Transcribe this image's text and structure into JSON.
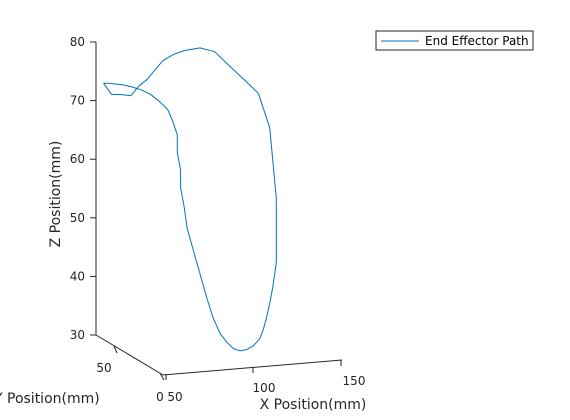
{
  "chart_data": {
    "type": "line",
    "projection": "3d",
    "xlabel": "X Position(mm)",
    "ylabel": "Y Position(mm)",
    "zlabel": "Z Position(mm)",
    "x_ticks": [
      "50",
      "100",
      "150"
    ],
    "y_ticks": [
      "0",
      "50"
    ],
    "z_ticks": [
      "30",
      "40",
      "50",
      "60",
      "70",
      "80"
    ],
    "zlim": [
      28,
      80
    ],
    "grid": false,
    "legend": {
      "position": "top-right",
      "entries": [
        "End Effector Path"
      ]
    },
    "series": [
      {
        "name": "End Effector Path",
        "color": "#0072bd",
        "path_description": "Closed-ish loop traced by end effector",
        "x": [
          55,
          57,
          60,
          62,
          64,
          66,
          68,
          70,
          73,
          76,
          80,
          84,
          88,
          92,
          96,
          99,
          100,
          101,
          101,
          101,
          100,
          99,
          98,
          97,
          96,
          94,
          92,
          90,
          88,
          86,
          84,
          82,
          80,
          78,
          76,
          74,
          73,
          72,
          72,
          71,
          71,
          70,
          69,
          67,
          65,
          63,
          61,
          59,
          57,
          56,
          55
        ],
        "y": [
          40,
          39,
          38,
          37,
          36,
          35,
          34,
          33,
          32,
          31,
          30,
          29,
          28,
          27,
          26,
          25,
          25,
          25,
          25,
          25,
          25,
          25,
          25,
          25,
          25,
          25,
          25,
          25,
          25,
          25,
          25,
          25,
          25,
          25,
          25,
          25,
          25,
          25,
          25,
          25,
          25,
          26,
          27,
          28,
          30,
          32,
          34,
          36,
          38,
          39,
          40
        ],
        "z": [
          74.5,
          72.5,
          72.3,
          72.0,
          73.5,
          74.5,
          76.0,
          77.5,
          78.5,
          79.0,
          79.3,
          78.5,
          76.0,
          73.5,
          71.0,
          65.0,
          59.0,
          53.0,
          47.0,
          42.0,
          38.0,
          35.0,
          32.5,
          30.5,
          29.0,
          27.8,
          27.2,
          27.0,
          27.4,
          28.5,
          30.0,
          32.5,
          36.0,
          40.0,
          44.0,
          48.0,
          52.0,
          55.0,
          58.0,
          61.0,
          64.0,
          66.5,
          68.5,
          70.0,
          71.5,
          72.5,
          73.2,
          73.8,
          74.2,
          74.4,
          74.5
        ]
      }
    ]
  }
}
